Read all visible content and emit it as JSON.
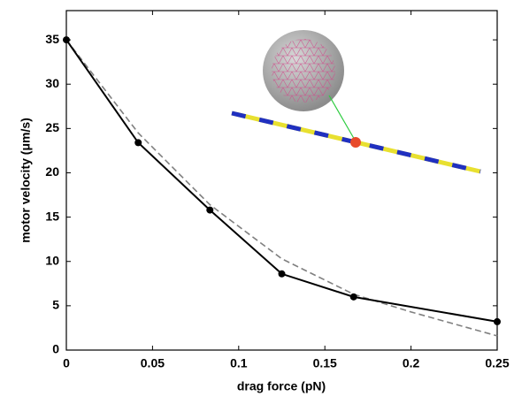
{
  "chart_data": {
    "type": "line",
    "x_label": "drag force (pN)",
    "y_label": "motor velocity (μm/s)",
    "xlim": [
      0,
      0.25
    ],
    "xticks": [
      0,
      0.05,
      0.1,
      0.15,
      0.2,
      0.25
    ],
    "ylim": [
      0,
      38.3
    ],
    "yticks": [
      0,
      5,
      10,
      15,
      20,
      25,
      30,
      35
    ],
    "series": [
      {
        "color": "#000000",
        "style": "solid",
        "markers": true,
        "x": [
          0,
          0.0417,
          0.0833,
          0.125,
          0.1667,
          0.25
        ],
        "values": [
          35,
          23.4,
          15.8,
          8.6,
          6.0,
          3.2
        ]
      },
      {
        "color": "#808080",
        "style": "dashed",
        "markers": false,
        "x": [
          0,
          0.0417,
          0.0833,
          0.125,
          0.1667,
          0.2,
          0.25
        ],
        "values": [
          35,
          24.5,
          16.4,
          10.3,
          6.3,
          4.3,
          1.6
        ]
      }
    ]
  }
}
